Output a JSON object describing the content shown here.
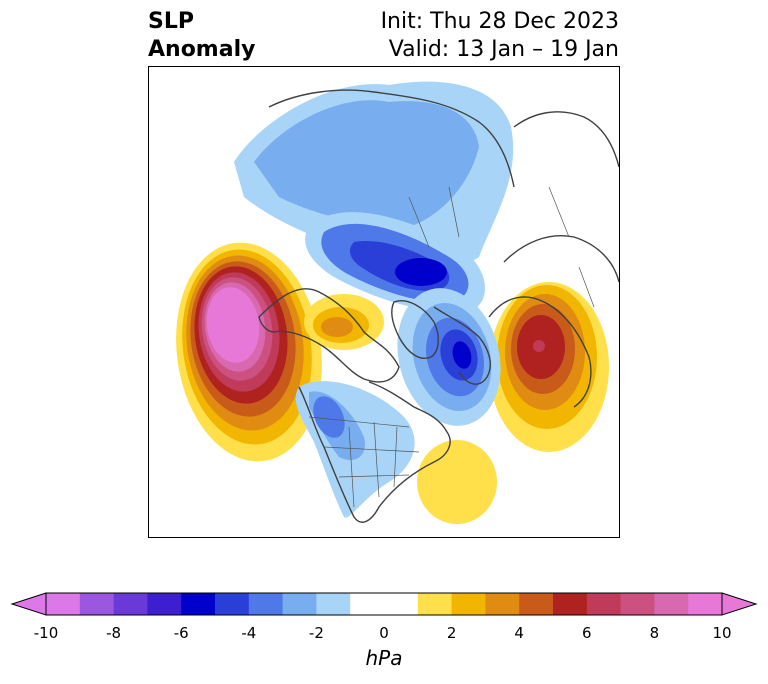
{
  "title": {
    "left_line1": "SLP",
    "left_line2": "Anomaly",
    "right_line1": "Init: Thu 28 Dec 2023",
    "right_line2": "Valid: 13 Jan – 19 Jan"
  },
  "colorbar": {
    "unit": "hPa",
    "ticks": [
      "-10",
      "-8",
      "-6",
      "-4",
      "-2",
      "0",
      "2",
      "4",
      "6",
      "8",
      "10"
    ],
    "levels": [
      -10,
      -9,
      -8,
      -7,
      -6,
      -5,
      -4,
      -3,
      -2,
      -1,
      1,
      2,
      3,
      4,
      5,
      6,
      7,
      8,
      9,
      10
    ],
    "colors": [
      "#dc78e8",
      "#9b57e0",
      "#6a3ad8",
      "#3d1ed0",
      "#0000cc",
      "#2a3fd8",
      "#4f78e8",
      "#78aef0",
      "#a8d4f8",
      "#ffffff",
      "#ffe04a",
      "#f2b600",
      "#e08c12",
      "#c85a1a",
      "#b0221f",
      "#c03a5a",
      "#cc5080",
      "#d868b0",
      "#e878d8"
    ],
    "extend_min_color": "#dc78e8",
    "extend_max_color": "#e878d8"
  },
  "map": {
    "projection": "north polar stereographic",
    "features": [
      "coastlines",
      "country borders",
      "US state borders"
    ],
    "anomaly_centers": [
      {
        "name": "Gulf of Alaska high",
        "sign": "positive",
        "peak_hpa": 10
      },
      {
        "name": "Scandinavia high",
        "sign": "positive",
        "peak_hpa": 6
      },
      {
        "name": "Western Atlantic high",
        "sign": "positive",
        "peak_hpa": 2
      },
      {
        "name": "Siberian low",
        "sign": "negative",
        "peak_hpa": -6
      },
      {
        "name": "Greenland/Arctic low",
        "sign": "negative",
        "peak_hpa": -6
      },
      {
        "name": "Western US low",
        "sign": "negative",
        "peak_hpa": -4
      },
      {
        "name": "Arctic Russia low",
        "sign": "negative",
        "peak_hpa": -3
      }
    ]
  }
}
